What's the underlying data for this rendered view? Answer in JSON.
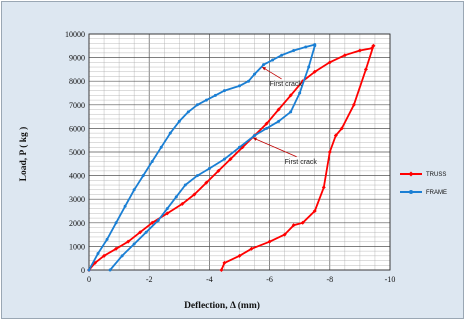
{
  "chart_data": {
    "type": "line",
    "xlabel": "Deflection, Δ  (mm)",
    "ylabel": "Load, P ( kg )",
    "xlim": [
      0,
      -10
    ],
    "ylim": [
      0,
      10000
    ],
    "x_ticks": [
      "0",
      "-2",
      "-4",
      "-6",
      "-8",
      "-10"
    ],
    "y_ticks": [
      "0",
      "1000",
      "2000",
      "3000",
      "4000",
      "5000",
      "6000",
      "7000",
      "8000",
      "9000",
      "10000"
    ],
    "grid": true,
    "minor_grid": true,
    "legend_position": "right",
    "series": [
      {
        "name": "TRUSS",
        "color": "#ff0000",
        "marker": "diamond",
        "x": [
          0,
          -0.2,
          -0.5,
          -0.9,
          -1.3,
          -1.7,
          -2.1,
          -2.6,
          -3.1,
          -3.5,
          -3.9,
          -4.3,
          -4.7,
          -5.1,
          -5.5,
          -5.9,
          -6.3,
          -6.7,
          -7.1,
          -7.5,
          -8.0,
          -8.5,
          -9.0,
          -9.4,
          -9.45,
          -9.2,
          -8.8,
          -8.4,
          -8.2,
          -8.0,
          -7.8,
          -7.5,
          -7.1,
          -6.8,
          -6.5,
          -6.0,
          -5.4,
          -5.0,
          -4.5,
          -4.4
        ],
        "y": [
          0,
          300,
          600,
          900,
          1200,
          1600,
          2000,
          2400,
          2800,
          3200,
          3700,
          4200,
          4700,
          5200,
          5700,
          6200,
          6800,
          7400,
          8000,
          8400,
          8800,
          9100,
          9300,
          9400,
          9500,
          8500,
          7000,
          6000,
          5700,
          5000,
          3500,
          2500,
          2000,
          1900,
          1500,
          1200,
          900,
          600,
          300,
          0
        ]
      },
      {
        "name": "FRAME",
        "color": "#1a7fd4",
        "marker": "circle",
        "x": [
          0,
          -0.3,
          -0.6,
          -0.9,
          -1.2,
          -1.5,
          -1.8,
          -2.1,
          -2.4,
          -2.7,
          -3.0,
          -3.3,
          -3.6,
          -3.9,
          -4.2,
          -4.5,
          -5.0,
          -5.3,
          -5.5,
          -5.8,
          -6.1,
          -6.4,
          -6.8,
          -7.2,
          -7.5,
          -7.5,
          -7.3,
          -7.0,
          -6.7,
          -6.3,
          -5.9,
          -5.5,
          -5.0,
          -4.5,
          -4.0,
          -3.6,
          -3.2,
          -2.9,
          -2.6,
          -2.3,
          -1.9,
          -1.5,
          -1.1,
          -0.7
        ],
        "y": [
          0,
          700,
          1300,
          2000,
          2700,
          3400,
          4000,
          4600,
          5200,
          5800,
          6300,
          6700,
          7000,
          7200,
          7400,
          7600,
          7800,
          8000,
          8300,
          8700,
          8900,
          9100,
          9300,
          9450,
          9550,
          9500,
          8600,
          7500,
          6700,
          6300,
          6000,
          5700,
          5200,
          4700,
          4300,
          4000,
          3600,
          3100,
          2600,
          2100,
          1600,
          1100,
          600,
          0
        ]
      }
    ],
    "annotations": [
      {
        "text": "First crack",
        "x": -6.0,
        "y": 7800,
        "arrow_to": [
          -5.75,
          8600
        ]
      },
      {
        "text": "First crack",
        "x": -6.5,
        "y": 4500,
        "arrow_to": [
          -5.45,
          5600
        ]
      }
    ]
  }
}
